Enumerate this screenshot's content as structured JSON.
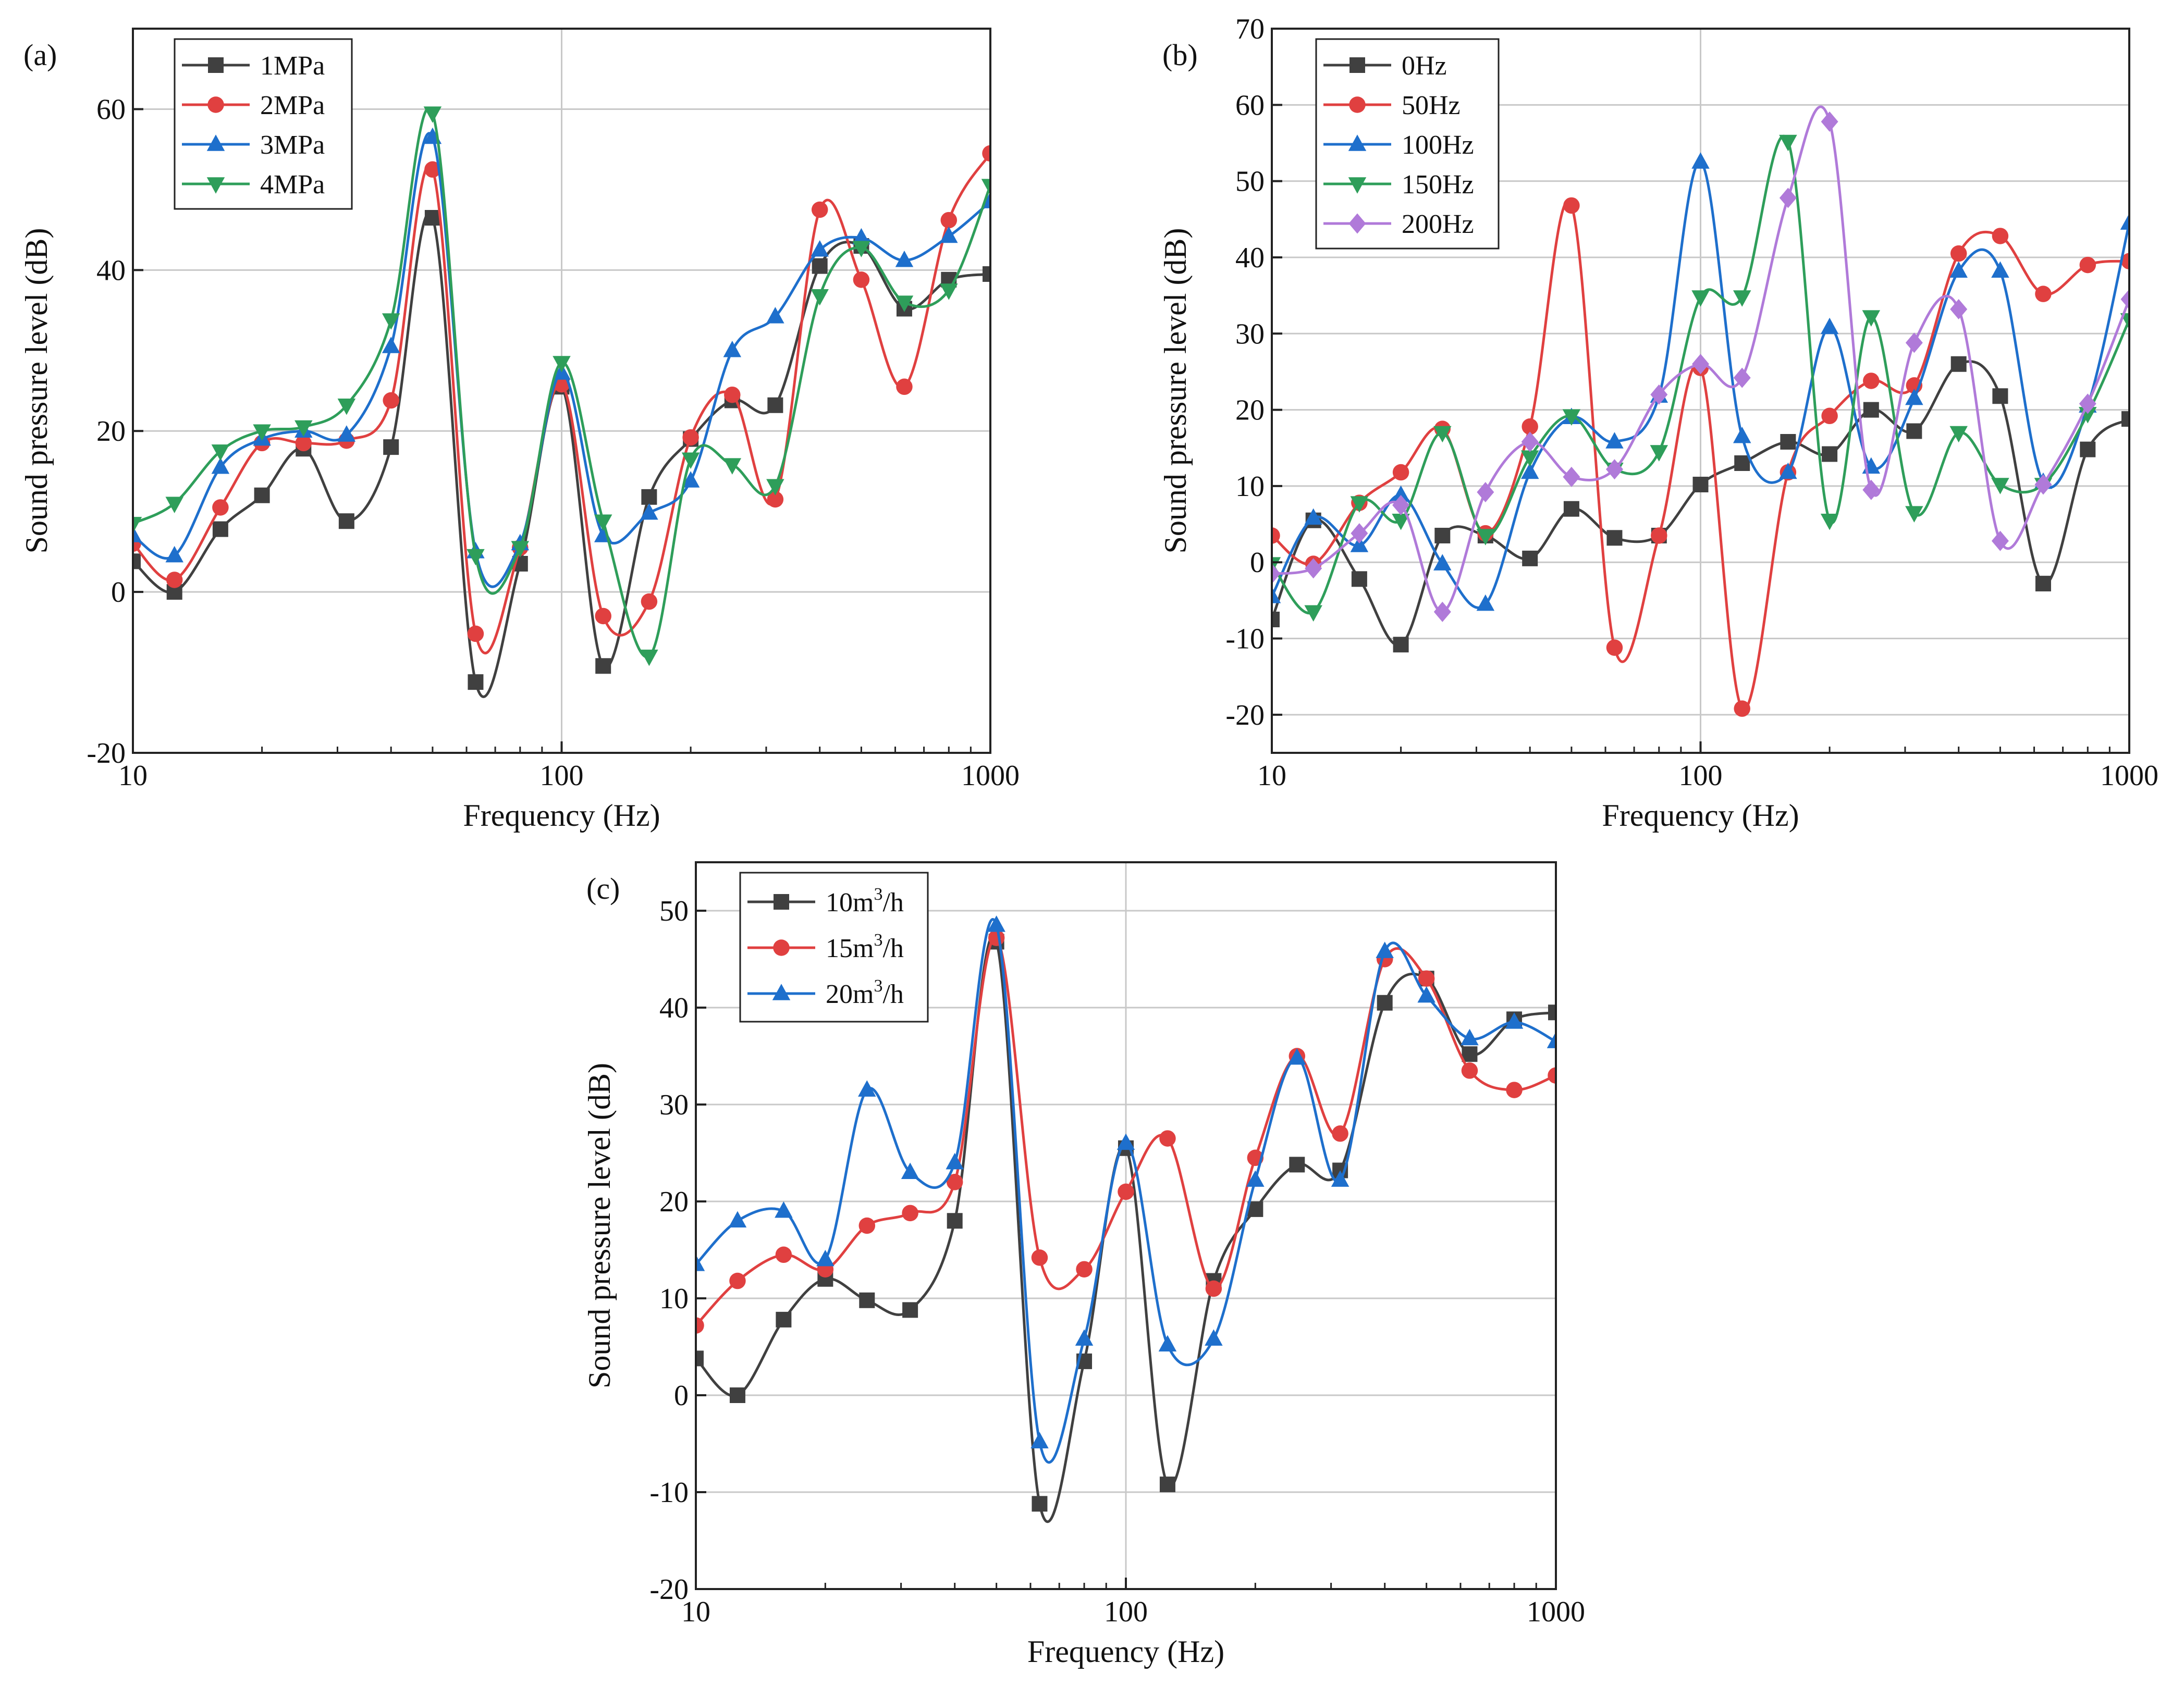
{
  "charts": [
    {
      "id": "a",
      "panel_label": "(a)",
      "type": "line",
      "xscale": "log",
      "xlim": [
        10,
        1000
      ],
      "ylim": [
        -20,
        70
      ],
      "xticks": [
        10,
        100,
        1000
      ],
      "xtick_labels": [
        "10",
        "100",
        "1000"
      ],
      "yticks": [
        -20,
        0,
        20,
        40,
        60
      ],
      "ytick_labels": [
        "-20",
        "0",
        "20",
        "40",
        "60"
      ],
      "xlabel": "Frequency (Hz)",
      "ylabel": "Sound pressure level (dB)",
      "grid": true,
      "legend_position": "top-left",
      "legend_names": [
        "1MPa",
        "2MPa",
        "3MPa",
        "4MPa"
      ],
      "series": [
        {
          "name": "1MPa",
          "color": "#404040",
          "marker": "square",
          "x": [
            10,
            12.5,
            16,
            20,
            25,
            31.5,
            40,
            50,
            63,
            80,
            100,
            125,
            160,
            200,
            250,
            315,
            400,
            500,
            630,
            800,
            1000
          ],
          "y": [
            3.8,
            0,
            7.8,
            12,
            17.8,
            8.8,
            18,
            46.5,
            -11.2,
            3.5,
            25.5,
            -9.2,
            11.8,
            19,
            23.8,
            23.2,
            40.5,
            43,
            35.2,
            38.8,
            39.5
          ]
        },
        {
          "name": "2MPa",
          "color": "#e04040",
          "marker": "circle",
          "x": [
            10,
            12.5,
            16,
            20,
            25,
            31.5,
            40,
            50,
            63,
            80,
            100,
            125,
            160,
            200,
            250,
            315,
            400,
            500,
            630,
            800,
            1000
          ],
          "y": [
            6,
            1.5,
            10.5,
            18.5,
            18.5,
            18.8,
            23.8,
            52.5,
            -5.2,
            5.5,
            25.8,
            -3,
            -1.2,
            19.2,
            24.5,
            11.5,
            47.5,
            38.8,
            25.5,
            46.2,
            54.5
          ]
        },
        {
          "name": "3MPa",
          "color": "#1e6fcc",
          "marker": "triangle-up",
          "x": [
            10,
            12.5,
            16,
            20,
            25,
            31.5,
            40,
            50,
            63,
            80,
            100,
            125,
            160,
            200,
            250,
            315,
            400,
            500,
            630,
            800,
            1000
          ],
          "y": [
            7,
            4.5,
            15.5,
            19,
            20,
            19.5,
            30.5,
            56.5,
            5,
            6,
            27.2,
            7,
            9.8,
            13.8,
            30,
            34.2,
            42.5,
            44,
            41.2,
            44.2,
            48.5
          ]
        },
        {
          "name": "4MPa",
          "color": "#2e9e5a",
          "marker": "triangle-down",
          "x": [
            10,
            12.5,
            16,
            20,
            25,
            31.5,
            40,
            50,
            63,
            80,
            100,
            125,
            160,
            200,
            250,
            315,
            400,
            500,
            630,
            800,
            1000
          ],
          "y": [
            8.5,
            11,
            17.5,
            20,
            20.5,
            23.2,
            33.8,
            59.5,
            4.5,
            5.5,
            28.5,
            8.8,
            -8,
            16.5,
            15.8,
            13.2,
            36.8,
            42.8,
            36,
            37.5,
            50.5
          ]
        }
      ]
    },
    {
      "id": "b",
      "panel_label": "(b)",
      "type": "line",
      "xscale": "log",
      "xlim": [
        10,
        1000
      ],
      "ylim": [
        -25,
        70
      ],
      "xticks": [
        10,
        100,
        1000
      ],
      "xtick_labels": [
        "10",
        "100",
        "1000"
      ],
      "yticks": [
        -20,
        -10,
        0,
        10,
        20,
        30,
        40,
        50,
        60,
        70
      ],
      "ytick_labels": [
        "-20",
        "-10",
        "0",
        "10",
        "20",
        "30",
        "40",
        "50",
        "60",
        "70"
      ],
      "xlabel": "Frequency (Hz)",
      "ylabel": "Sound pressure level (dB)",
      "grid": true,
      "legend_position": "top-left",
      "legend_names": [
        "0Hz",
        "50Hz",
        "100Hz",
        "150Hz",
        "200Hz"
      ],
      "series": [
        {
          "name": "0Hz",
          "color": "#404040",
          "marker": "square",
          "x": [
            10,
            12.5,
            16,
            20,
            25,
            31.5,
            40,
            50,
            63,
            80,
            100,
            125,
            160,
            200,
            250,
            315,
            400,
            500,
            630,
            800,
            1000
          ],
          "y": [
            -7.5,
            5.5,
            -2.2,
            -10.8,
            3.5,
            3.5,
            0.5,
            7,
            3.2,
            3.5,
            10.2,
            13,
            15.8,
            14.2,
            20,
            17.2,
            26,
            21.8,
            -2.8,
            14.8,
            18.8
          ]
        },
        {
          "name": "50Hz",
          "color": "#e04040",
          "marker": "circle",
          "x": [
            10,
            12.5,
            16,
            20,
            25,
            31.5,
            40,
            50,
            63,
            80,
            100,
            125,
            160,
            200,
            250,
            315,
            400,
            500,
            630,
            800,
            1000
          ],
          "y": [
            3.5,
            -0.2,
            7.8,
            11.8,
            17.5,
            3.8,
            17.8,
            46.8,
            -11.2,
            3.5,
            25.5,
            -19.2,
            11.8,
            19.2,
            23.8,
            23.2,
            40.5,
            42.8,
            35.2,
            39,
            39.5
          ]
        },
        {
          "name": "100Hz",
          "color": "#1e6fcc",
          "marker": "triangle-up",
          "x": [
            10,
            12.5,
            16,
            20,
            25,
            31.5,
            40,
            50,
            63,
            80,
            100,
            125,
            160,
            200,
            250,
            315,
            400,
            500,
            630,
            800,
            1000
          ],
          "y": [
            -4.5,
            5.8,
            2.2,
            8.8,
            -0.2,
            -5.5,
            11.8,
            19,
            15.8,
            21.8,
            52.5,
            16.5,
            11.8,
            30.8,
            12.5,
            21.5,
            38.2,
            38.2,
            10.5,
            20.5,
            44.5
          ]
        },
        {
          "name": "150Hz",
          "color": "#2e9e5a",
          "marker": "triangle-down",
          "x": [
            10,
            12.5,
            16,
            20,
            25,
            31.5,
            40,
            50,
            63,
            80,
            100,
            125,
            160,
            200,
            250,
            315,
            400,
            500,
            630,
            800,
            1000
          ],
          "y": [
            -0.2,
            -6.5,
            7.8,
            5.5,
            17,
            3.5,
            13.8,
            19.2,
            12.2,
            14.5,
            34.8,
            34.8,
            55.2,
            5.5,
            32.2,
            6.5,
            17,
            10.2,
            10.2,
            19.5,
            31.8
          ]
        },
        {
          "name": "200Hz",
          "color": "#b07ad9",
          "marker": "diamond",
          "x": [
            10,
            12.5,
            16,
            20,
            25,
            31.5,
            40,
            50,
            63,
            80,
            100,
            125,
            160,
            200,
            250,
            315,
            400,
            500,
            630,
            800,
            1000
          ],
          "y": [
            -1.5,
            -0.8,
            3.8,
            7.5,
            -6.5,
            9.2,
            15.8,
            11.2,
            12.2,
            22,
            26,
            24.2,
            47.8,
            57.8,
            9.5,
            28.8,
            33.2,
            2.8,
            10.2,
            20.8,
            34.5
          ]
        }
      ]
    },
    {
      "id": "c",
      "panel_label": "(c)",
      "type": "line",
      "xscale": "log",
      "xlim": [
        10,
        1000
      ],
      "ylim": [
        -20,
        55
      ],
      "xticks": [
        10,
        100,
        1000
      ],
      "xtick_labels": [
        "10",
        "100",
        "1000"
      ],
      "yticks": [
        -20,
        -10,
        0,
        10,
        20,
        30,
        40,
        50
      ],
      "ytick_labels": [
        "-20",
        "-10",
        "0",
        "10",
        "20",
        "30",
        "40",
        "50"
      ],
      "xlabel": "Frequency (Hz)",
      "ylabel": "Sound pressure level (dB)",
      "grid": true,
      "legend_position": "top-left",
      "legend_names": [
        "10m",
        "15m",
        "20m"
      ],
      "legend_superscript": "3",
      "legend_suffix": "/h",
      "series": [
        {
          "name": "10m3/h",
          "color": "#404040",
          "marker": "square",
          "x": [
            10,
            12.5,
            16,
            20,
            25,
            31.5,
            40,
            50,
            63,
            80,
            100,
            125,
            160,
            200,
            250,
            315,
            400,
            500,
            630,
            800,
            1000
          ],
          "y": [
            3.8,
            0,
            7.8,
            12,
            9.8,
            8.8,
            18,
            46.8,
            -11.2,
            3.5,
            25.5,
            -9.2,
            11.8,
            19.2,
            23.8,
            23.2,
            40.5,
            43,
            35.2,
            38.8,
            39.5
          ]
        },
        {
          "name": "15m3/h",
          "color": "#e04040",
          "marker": "circle",
          "x": [
            10,
            12.5,
            16,
            20,
            25,
            31.5,
            40,
            50,
            63,
            80,
            100,
            125,
            160,
            200,
            250,
            315,
            400,
            500,
            630,
            800,
            1000
          ],
          "y": [
            7.2,
            11.8,
            14.5,
            13,
            17.5,
            18.8,
            22,
            47.2,
            14.2,
            13,
            21,
            26.5,
            11,
            24.5,
            35,
            27,
            45,
            43,
            33.5,
            31.5,
            33
          ]
        },
        {
          "name": "20m3/h",
          "color": "#1e6fcc",
          "marker": "triangle-up",
          "x": [
            10,
            12.5,
            16,
            20,
            25,
            31.5,
            40,
            50,
            63,
            80,
            100,
            125,
            160,
            200,
            250,
            315,
            400,
            500,
            630,
            800,
            1000
          ],
          "y": [
            13.5,
            18,
            19,
            14,
            31.5,
            23,
            24,
            48.5,
            -4.8,
            5.8,
            26,
            5.2,
            5.8,
            22.2,
            34.8,
            22.2,
            45.8,
            41.2,
            36.8,
            38.5,
            36.5
          ]
        }
      ]
    }
  ]
}
